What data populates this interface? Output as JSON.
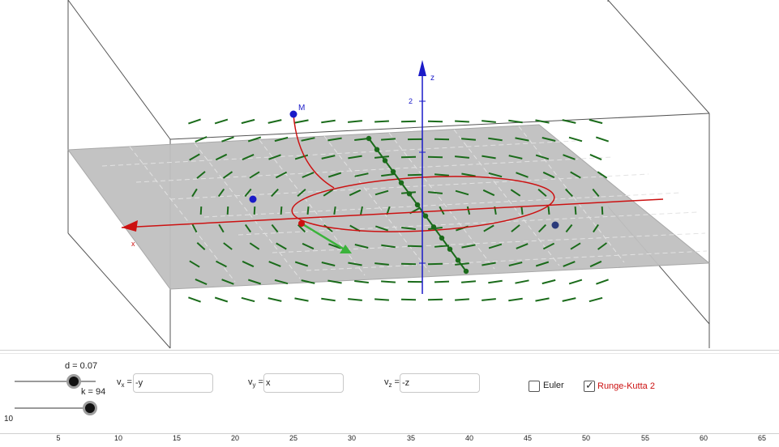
{
  "view3d": {
    "axis_z_label": "z",
    "axis_z_tick_2": "2",
    "axis_x_label": "x",
    "point_m_label": "M",
    "colors": {
      "plane": "#c0c0c0",
      "field": "#1a6b1a",
      "trajectory": "#cc1111",
      "z_axis": "#1a1ac8",
      "points": "#1a1ac8",
      "box": "#555555"
    }
  },
  "sliders": {
    "d": {
      "label": "d = 0.07",
      "value": 0.07
    },
    "k": {
      "label": "k = 94",
      "value": 94
    },
    "min_label": "10"
  },
  "fields": {
    "vx": {
      "label_prefix": "v",
      "label_sub": "x",
      "label_suffix": " =",
      "value": "-y"
    },
    "vy": {
      "label_prefix": "v",
      "label_sub": "y",
      "label_suffix": " =",
      "value": "x"
    },
    "vz": {
      "label_prefix": "v",
      "label_sub": "z",
      "label_suffix": " =",
      "value": "-z"
    }
  },
  "checkboxes": {
    "euler": {
      "label": "Euler",
      "checked": false
    },
    "runge_kutta": {
      "label": "Runge-Kutta 2",
      "checked": true,
      "color": "#cc1111"
    }
  },
  "number_axis": {
    "ticks": [
      "5",
      "10",
      "15",
      "20",
      "25",
      "30",
      "35",
      "40",
      "45",
      "50",
      "55",
      "60",
      "65"
    ]
  }
}
